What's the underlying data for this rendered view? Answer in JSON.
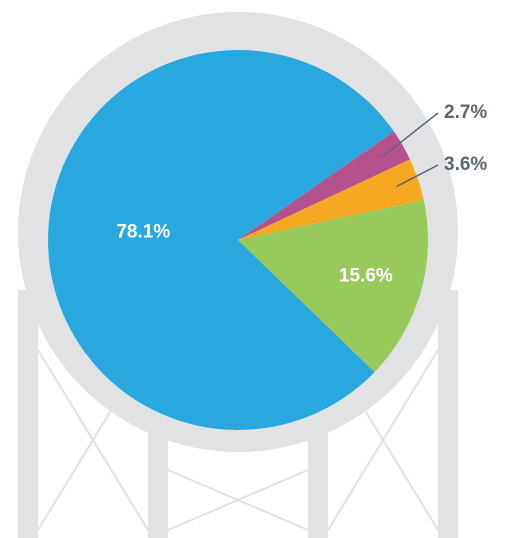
{
  "chart_data": {
    "type": "pie",
    "values": [
      78.1,
      2.7,
      3.6,
      15.6
    ],
    "value_labels": [
      "78.1%",
      "2.7%",
      "3.6%",
      "15.6%"
    ],
    "colors": [
      "#29a8e0",
      "#b5528e",
      "#f7a823",
      "#97c95b"
    ]
  }
}
